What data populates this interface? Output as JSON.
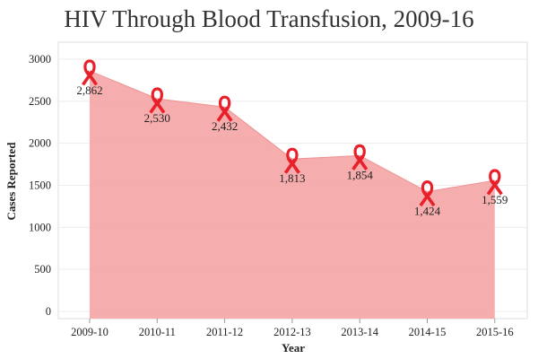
{
  "chart_data": {
    "type": "area",
    "title": "HIV Through Blood Transfusion, 2009-16",
    "xlabel": "Year",
    "ylabel": "Cases Reported",
    "categories": [
      "2009-10",
      "2010-11",
      "2011-12",
      "2012-13",
      "2013-14",
      "2014-15",
      "2015-16"
    ],
    "values": [
      2862,
      2530,
      2432,
      1813,
      1854,
      1424,
      1559
    ],
    "data_labels": [
      "2,862",
      "2,530",
      "2,432",
      "1,813",
      "1,854",
      "1,424",
      "1,559"
    ],
    "yticks": [
      "0",
      "500",
      "1000",
      "1500",
      "2000",
      "2500",
      "3000"
    ],
    "ylim": [
      0,
      3000
    ],
    "grid": true,
    "marker_icon": "red-ribbon-icon",
    "colors": {
      "area": "#f4a6a6",
      "area_line": "#ee9494",
      "ribbon": "#e8202a",
      "grid": "#ececec"
    }
  }
}
